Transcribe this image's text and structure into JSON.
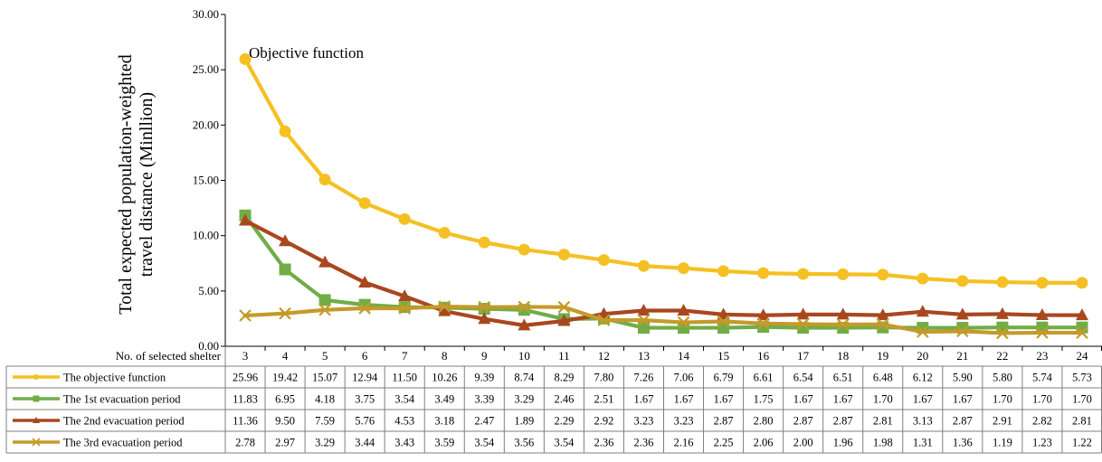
{
  "chart_data": {
    "type": "line",
    "ylabel_line1": "Total expected population-weighted",
    "ylabel_line2": "travel distance  (Minllion)",
    "ylim": [
      0,
      30
    ],
    "yticks": [
      "0.00",
      "5.00",
      "10.00",
      "15.00",
      "20.00",
      "25.00",
      "30.00"
    ],
    "xlabel": "No. of selected shelter",
    "categories": [
      "3",
      "4",
      "5",
      "6",
      "7",
      "8",
      "9",
      "10",
      "11",
      "12",
      "13",
      "14",
      "15",
      "16",
      "17",
      "18",
      "19",
      "20",
      "21",
      "22",
      "23",
      "24"
    ],
    "annotation": "Objective function",
    "grid": false,
    "legend": "data-table",
    "series": [
      {
        "name": "The objective function",
        "color": "#F5C023",
        "marker": "circle",
        "values": [
          25.96,
          19.42,
          15.07,
          12.94,
          11.5,
          10.26,
          9.39,
          8.74,
          8.29,
          7.8,
          7.26,
          7.06,
          6.79,
          6.61,
          6.54,
          6.51,
          6.48,
          6.12,
          5.9,
          5.8,
          5.74,
          5.73
        ],
        "labels": [
          "25.96",
          "19.42",
          "15.07",
          "12.94",
          "11.50",
          "10.26",
          "9.39",
          "8.74",
          "8.29",
          "7.80",
          "7.26",
          "7.06",
          "6.79",
          "6.61",
          "6.54",
          "6.51",
          "6.48",
          "6.12",
          "5.90",
          "5.80",
          "5.74",
          "5.73"
        ]
      },
      {
        "name": "The 1st evacuation period",
        "color": "#70AD47",
        "marker": "square",
        "values": [
          11.83,
          6.95,
          4.18,
          3.75,
          3.54,
          3.49,
          3.39,
          3.29,
          2.46,
          2.51,
          1.67,
          1.67,
          1.67,
          1.75,
          1.67,
          1.67,
          1.7,
          1.67,
          1.67,
          1.7,
          1.7,
          1.7
        ],
        "labels": [
          "11.83",
          "6.95",
          "4.18",
          "3.75",
          "3.54",
          "3.49",
          "3.39",
          "3.29",
          "2.46",
          "2.51",
          "1.67",
          "1.67",
          "1.67",
          "1.75",
          "1.67",
          "1.67",
          "1.70",
          "1.67",
          "1.67",
          "1.70",
          "1.70",
          "1.70"
        ]
      },
      {
        "name": "The 2nd evacuation period",
        "color": "#A9471F",
        "marker": "triangle",
        "values": [
          11.36,
          9.5,
          7.59,
          5.76,
          4.53,
          3.18,
          2.47,
          1.89,
          2.29,
          2.92,
          3.23,
          3.23,
          2.87,
          2.8,
          2.87,
          2.87,
          2.81,
          3.13,
          2.87,
          2.91,
          2.82,
          2.81
        ],
        "labels": [
          "11.36",
          "9.50",
          "7.59",
          "5.76",
          "4.53",
          "3.18",
          "2.47",
          "1.89",
          "2.29",
          "2.92",
          "3.23",
          "3.23",
          "2.87",
          "2.80",
          "2.87",
          "2.87",
          "2.81",
          "3.13",
          "2.87",
          "2.91",
          "2.82",
          "2.81"
        ]
      },
      {
        "name": "The 3rd evacuation period",
        "color": "#C49A2A",
        "marker": "x",
        "values": [
          2.78,
          2.97,
          3.29,
          3.44,
          3.43,
          3.59,
          3.54,
          3.56,
          3.54,
          2.36,
          2.36,
          2.16,
          2.25,
          2.06,
          2.0,
          1.96,
          1.98,
          1.31,
          1.36,
          1.19,
          1.23,
          1.22
        ],
        "labels": [
          "2.78",
          "2.97",
          "3.29",
          "3.44",
          "3.43",
          "3.59",
          "3.54",
          "3.56",
          "3.54",
          "2.36",
          "2.36",
          "2.16",
          "2.25",
          "2.06",
          "2.00",
          "1.96",
          "1.98",
          "1.31",
          "1.36",
          "1.19",
          "1.23",
          "1.22"
        ]
      }
    ]
  }
}
